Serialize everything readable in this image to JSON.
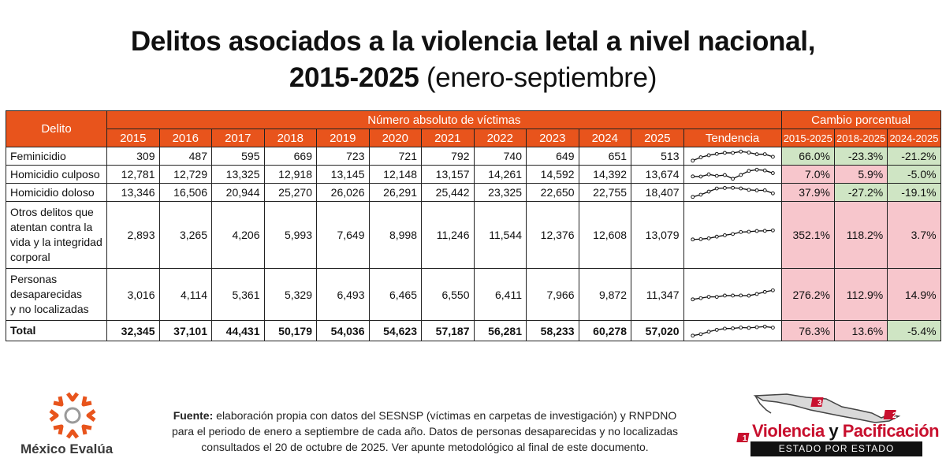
{
  "title": {
    "line1": "Delitos asociados a la violencia letal a nivel nacional,",
    "line2_bold": "2015-2025",
    "line2_rest": "(enero-septiembre)"
  },
  "table": {
    "header": {
      "delito": "Delito",
      "numero": "Número absoluto de víctimas",
      "cambio": "Cambio porcentual",
      "years": [
        "2015",
        "2016",
        "2017",
        "2018",
        "2019",
        "2020",
        "2021",
        "2022",
        "2023",
        "2024",
        "2025"
      ],
      "tendencia": "Tendencia",
      "pct_cols": [
        "2015-2025",
        "2018-2025",
        "2024-2025"
      ]
    },
    "rows": [
      {
        "name": [
          "Feminicidio"
        ],
        "values": [
          "309",
          "487",
          "595",
          "669",
          "723",
          "721",
          "792",
          "740",
          "649",
          "651",
          "513"
        ],
        "series": [
          309,
          487,
          595,
          669,
          723,
          721,
          792,
          740,
          649,
          651,
          513
        ],
        "pct": [
          "66.0%",
          "-23.3%",
          "-21.2%"
        ],
        "pct_colors": [
          "green",
          "green",
          "green"
        ]
      },
      {
        "name": [
          "Homicidio culposo"
        ],
        "values": [
          "12,781",
          "12,729",
          "13,325",
          "12,918",
          "13,145",
          "12,148",
          "13,157",
          "14,261",
          "14,592",
          "14,392",
          "13,674"
        ],
        "series": [
          12781,
          12729,
          13325,
          12918,
          13145,
          12148,
          13157,
          14261,
          14592,
          14392,
          13674
        ],
        "pct": [
          "7.0%",
          "5.9%",
          "-5.0%"
        ],
        "pct_colors": [
          "pink",
          "pink",
          "green"
        ]
      },
      {
        "name": [
          "Homicidio doloso"
        ],
        "values": [
          "13,346",
          "16,506",
          "20,944",
          "25,270",
          "26,026",
          "26,291",
          "25,442",
          "23,325",
          "22,650",
          "22,755",
          "18,407"
        ],
        "series": [
          13346,
          16506,
          20944,
          25270,
          26026,
          26291,
          25442,
          23325,
          22650,
          22755,
          18407
        ],
        "pct": [
          "37.9%",
          "-27.2%",
          "-19.1%"
        ],
        "pct_colors": [
          "pink",
          "green",
          "green"
        ]
      },
      {
        "name": [
          "Otros delitos que",
          "atentan contra la",
          "vida y la integridad",
          "corporal"
        ],
        "values": [
          "2,893",
          "3,265",
          "4,206",
          "5,993",
          "7,649",
          "8,998",
          "11,246",
          "11,544",
          "12,376",
          "12,608",
          "13,079"
        ],
        "series": [
          2893,
          3265,
          4206,
          5993,
          7649,
          8998,
          11246,
          11544,
          12376,
          12608,
          13079
        ],
        "pct": [
          "352.1%",
          "118.2%",
          "3.7%"
        ],
        "pct_colors": [
          "pink",
          "pink",
          "pink"
        ]
      },
      {
        "name": [
          "Personas",
          "desaparecidas",
          "y no localizadas"
        ],
        "values": [
          "3,016",
          "4,114",
          "5,361",
          "5,329",
          "6,493",
          "6,465",
          "6,550",
          "6,411",
          "7,966",
          "9,872",
          "11,347"
        ],
        "series": [
          3016,
          4114,
          5361,
          5329,
          6493,
          6465,
          6550,
          6411,
          7966,
          9872,
          11347
        ],
        "pct": [
          "276.2%",
          "112.9%",
          "14.9%"
        ],
        "pct_colors": [
          "pink",
          "pink",
          "pink"
        ]
      },
      {
        "name": [
          "Total"
        ],
        "values": [
          "32,345",
          "37,101",
          "44,431",
          "50,179",
          "54,036",
          "54,623",
          "57,187",
          "56,281",
          "58,233",
          "60,278",
          "57,020"
        ],
        "series": [
          32345,
          37101,
          44431,
          50179,
          54036,
          54623,
          57187,
          56281,
          58233,
          60278,
          57020
        ],
        "pct": [
          "76.3%",
          "13.6%",
          "-5.4%"
        ],
        "pct_colors": [
          "pink",
          "pink",
          "green"
        ]
      }
    ]
  },
  "footer": {
    "label": "Fuente:",
    "line1": "elaboración propia con datos del SESNSP (víctimas en carpetas de investigación) y RNPDNO",
    "line2": "para el periodo de enero a septiembre de cada año. Datos de personas desaparecidas y no localizadas",
    "line3": "consultados el 20 de octubre de 2025. Ver apunte metodológico al final de este documento."
  },
  "logos": {
    "left_name": "México Evalúa",
    "right_word1": "Violencia",
    "right_y": "y",
    "right_word2": "Pacificación",
    "right_bar": "ESTADO POR ESTADO",
    "right_badges": [
      "1",
      "2",
      "3"
    ]
  },
  "colors": {
    "header": "#e8541c",
    "pink": "#f7c6cc",
    "green": "#cfe5c4",
    "logo_red": "#c8102e"
  }
}
